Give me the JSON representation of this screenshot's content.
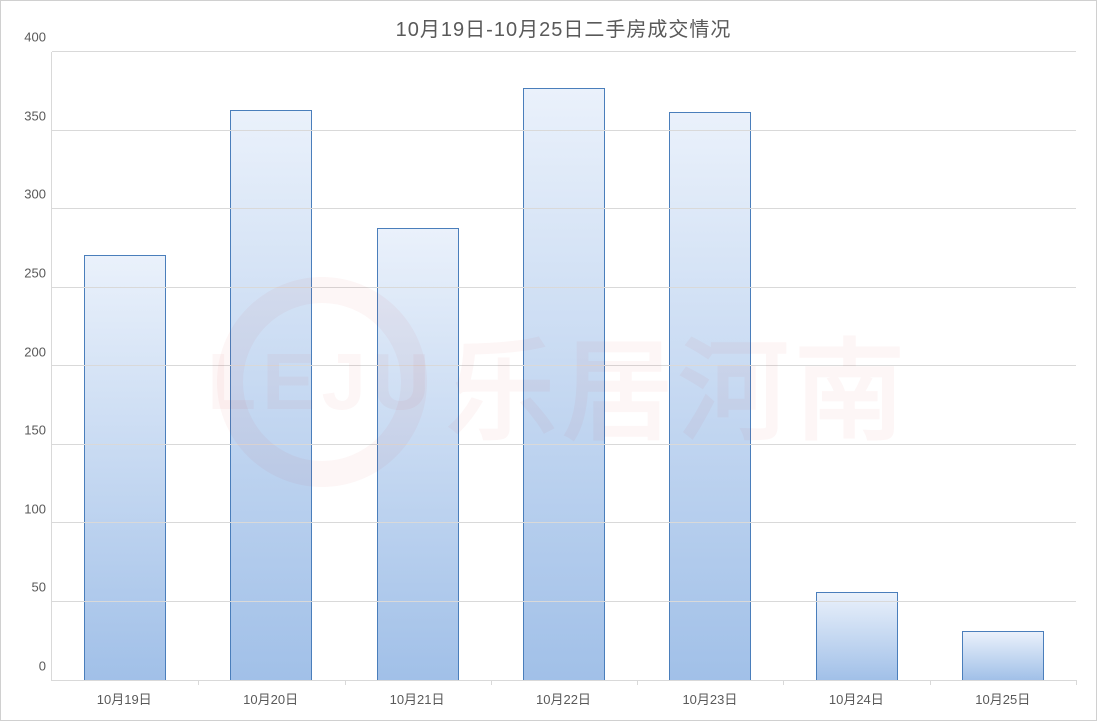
{
  "chart": {
    "type": "bar",
    "title": "10月19日-10月25日二手房成交情况",
    "title_fontsize": 20,
    "title_color": "#595959",
    "categories": [
      "10月19日",
      "10月20日",
      "10月21日",
      "10月22日",
      "10月23日",
      "10月24日",
      "10月25日"
    ],
    "values": [
      271,
      363,
      288,
      377,
      362,
      56,
      31
    ],
    "bar_gradient_top": "#eaf1fb",
    "bar_gradient_bottom": "#a1c0e8",
    "bar_border_color": "#4a7ebb",
    "bar_width_ratio": 0.56,
    "ylim": [
      0,
      400
    ],
    "ytick_step": 50,
    "yticks": [
      0,
      50,
      100,
      150,
      200,
      250,
      300,
      350,
      400
    ],
    "axis_label_fontsize": 13,
    "axis_label_color": "#595959",
    "grid_color": "#d9d9d9",
    "axis_line_color": "#d9d9d9",
    "background_color": "#ffffff",
    "chart_border_color": "#d0d0d0"
  },
  "watermark": {
    "logo_text": "LEJU",
    "text": "乐居河南",
    "color_rgba": "rgba(200,20,20,0.04)"
  }
}
